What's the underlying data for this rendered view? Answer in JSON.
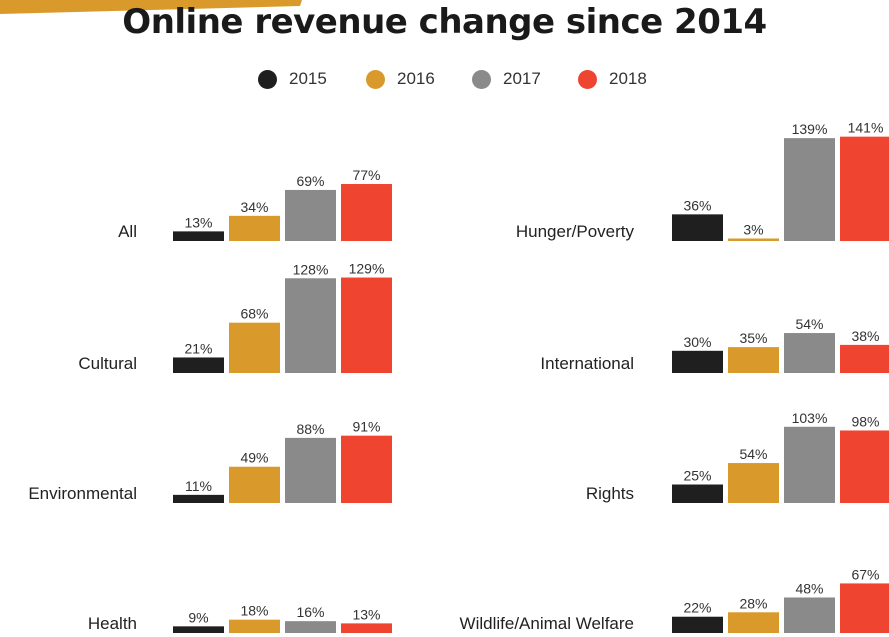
{
  "title": "Online revenue change since 2014",
  "colors": {
    "2015": "#1f1f1f",
    "2016": "#d99a2b",
    "2017": "#8a8a8a",
    "2018": "#ee4430",
    "stripe": "#d99a2b"
  },
  "chart_data": {
    "type": "bar",
    "title": "Online revenue change since 2014",
    "series": [
      {
        "name": "2015"
      },
      {
        "name": "2016"
      },
      {
        "name": "2017"
      },
      {
        "name": "2018"
      }
    ],
    "legend_position": "top",
    "grid": false,
    "unit": "%",
    "panels": [
      {
        "category": "All",
        "values": [
          13,
          34,
          69,
          77
        ],
        "labels": [
          "13%",
          "34%",
          "69%",
          "77%"
        ]
      },
      {
        "category": "Cultural",
        "values": [
          21,
          68,
          128,
          129
        ],
        "labels": [
          "21%",
          "68%",
          "128%",
          "129%"
        ]
      },
      {
        "category": "Environmental",
        "values": [
          11,
          49,
          88,
          91
        ],
        "labels": [
          "11%",
          "49%",
          "88%",
          "91%"
        ]
      },
      {
        "category": "Health",
        "values": [
          9,
          18,
          16,
          13
        ],
        "labels": [
          "9%",
          "18%",
          "16%",
          "13%"
        ]
      },
      {
        "category": "Hunger/Poverty",
        "values": [
          36,
          3,
          139,
          141
        ],
        "labels": [
          "36%",
          "3%",
          "139%",
          "141%"
        ]
      },
      {
        "category": "International",
        "values": [
          30,
          35,
          54,
          38
        ],
        "labels": [
          "30%",
          "35%",
          "54%",
          "38%"
        ]
      },
      {
        "category": "Rights",
        "values": [
          25,
          54,
          103,
          98
        ],
        "labels": [
          "25%",
          "54%",
          "103%",
          "98%"
        ]
      },
      {
        "category": "Wildlife/Animal Welfare",
        "values": [
          22,
          28,
          48,
          67
        ],
        "labels": [
          "22%",
          "28%",
          "48%",
          "67%"
        ]
      }
    ]
  }
}
